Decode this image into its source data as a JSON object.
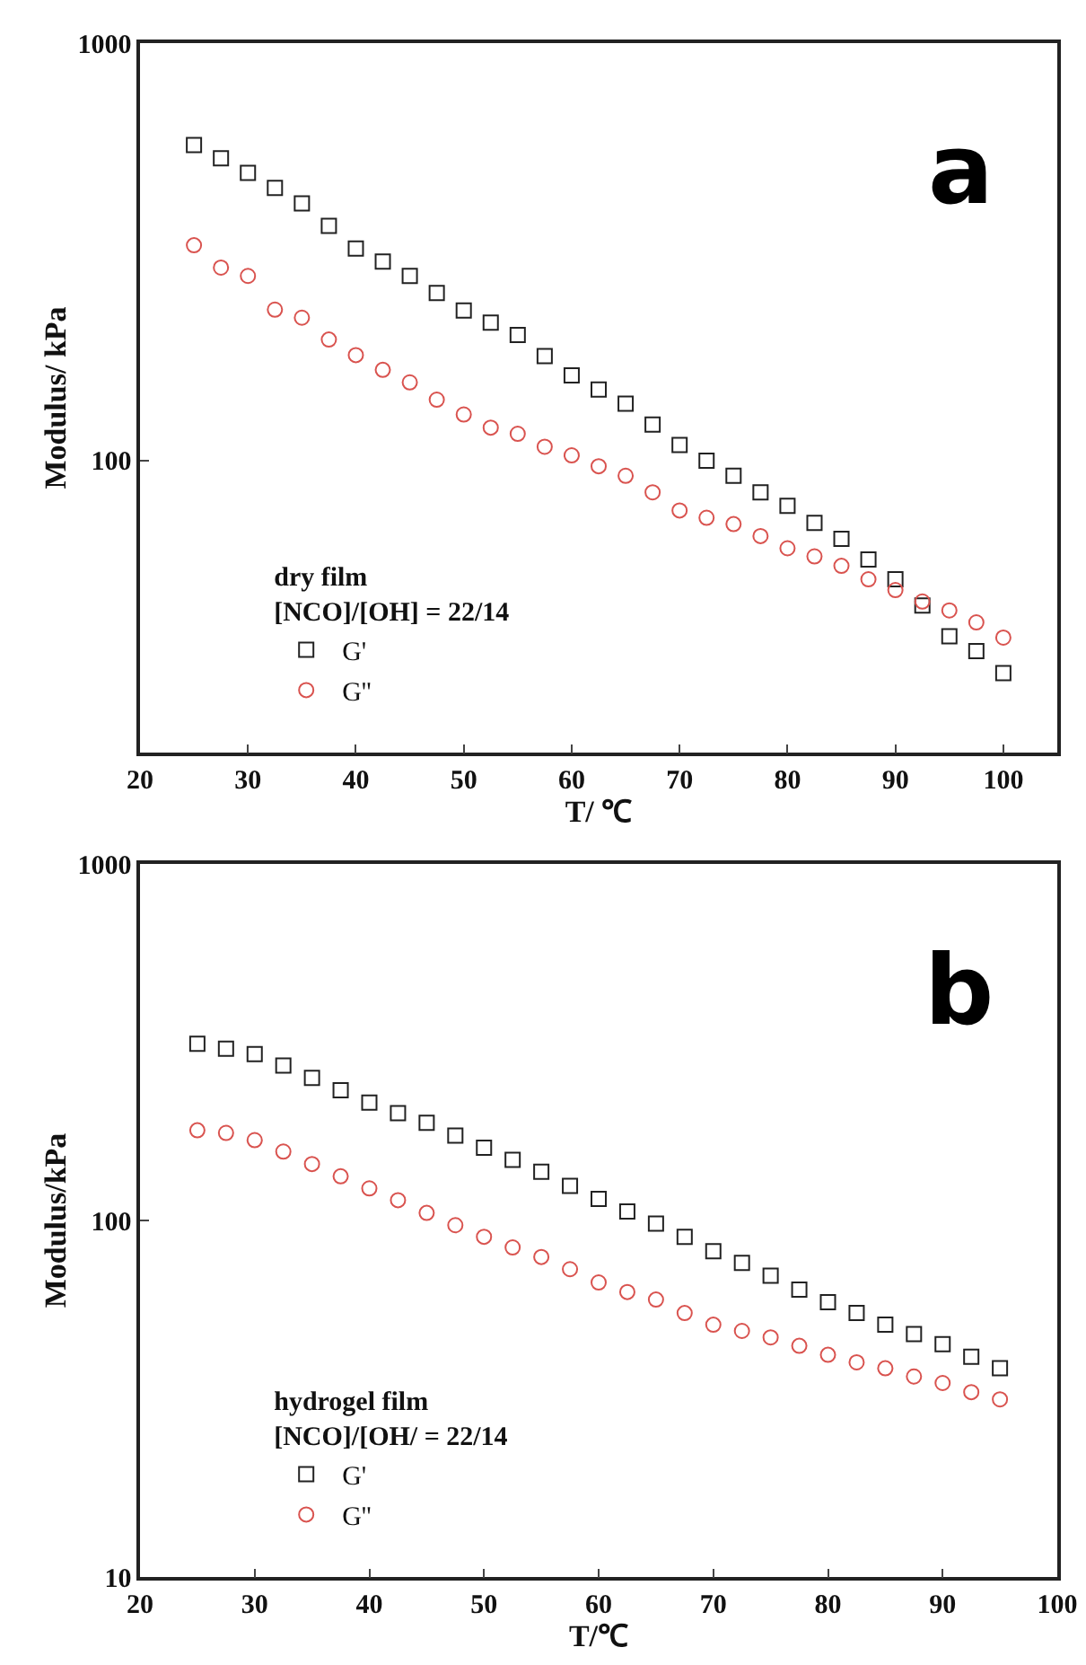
{
  "chart_data": [
    {
      "type": "scatter",
      "xlabel": "T/ ℃",
      "ylabel": "Modulus/ kPa",
      "legend_title": "dry film\n[NCO]/[OH] = 22/14",
      "legend": "bottom left",
      "log": "y",
      "xlim": [
        20,
        105
      ],
      "xticks": [
        20,
        30,
        40,
        50,
        60,
        70,
        80,
        90,
        100
      ],
      "ylim": [
        20,
        1000
      ],
      "yticks": [
        100,
        1000
      ],
      "annotations": [
        "a"
      ],
      "series": [
        {
          "name": "G'",
          "color": "#222222",
          "marker": "square",
          "x": [
            25,
            27.5,
            30,
            32.5,
            35,
            37.5,
            40,
            42.5,
            45,
            47.5,
            50,
            52.5,
            55,
            57.5,
            60,
            62.5,
            65,
            67.5,
            70,
            72.5,
            75,
            77.5,
            80,
            82.5,
            85,
            87.5,
            90,
            92.5,
            95,
            97.5,
            100
          ],
          "values": [
            570,
            530,
            489,
            450,
            413,
            365,
            322,
            300,
            277,
            252,
            229,
            214,
            200,
            178,
            160,
            148,
            137,
            122,
            109,
            100,
            92,
            84,
            78,
            71,
            65,
            58,
            52,
            45,
            38,
            35,
            31
          ]
        },
        {
          "name": "G''",
          "color": "#d9534f",
          "marker": "circle",
          "x": [
            25,
            27.5,
            30,
            32.5,
            35,
            37.5,
            40,
            42.5,
            45,
            47.5,
            50,
            52.5,
            55,
            57.5,
            60,
            62.5,
            65,
            67.5,
            70,
            72.5,
            75,
            77.5,
            80,
            82.5,
            85,
            87.5,
            90,
            92.5,
            95,
            97.5,
            100
          ],
          "values": [
            328,
            290,
            277,
            230,
            220,
            195,
            179,
            165,
            154,
            140,
            129,
            120,
            116,
            108,
            103,
            97,
            92,
            84,
            76,
            73,
            70.5,
            66,
            61.7,
            59,
            56,
            52,
            49,
            46,
            43.8,
            41,
            37.7
          ]
        }
      ]
    },
    {
      "type": "scatter",
      "xlabel": "T/℃",
      "ylabel": "Modulus/kPa",
      "legend_title": "hydrogel film\n[NCO]/[OH/ = 22/14",
      "legend": "bottom left",
      "log": "y",
      "xlim": [
        20,
        100
      ],
      "xticks": [
        20,
        30,
        40,
        50,
        60,
        70,
        80,
        90,
        100
      ],
      "ylim": [
        10,
        1000
      ],
      "yticks": [
        10,
        100,
        1000
      ],
      "annotations": [
        "b"
      ],
      "series": [
        {
          "name": "G'",
          "color": "#222222",
          "marker": "square",
          "x": [
            25,
            27.5,
            30,
            32.5,
            35,
            37.5,
            40,
            42.5,
            45,
            47.5,
            50,
            52.5,
            55,
            57.5,
            60,
            62.5,
            65,
            67.5,
            70,
            72.5,
            75,
            77.5,
            80,
            82.5,
            85,
            87.5,
            90,
            92.5,
            95
          ],
          "values": [
            313,
            303,
            293,
            272,
            251,
            232,
            214,
            200,
            188,
            173,
            160,
            148,
            137,
            125,
            115,
            106,
            98,
            90,
            82,
            76,
            70,
            64,
            59,
            55,
            51,
            48,
            45,
            41.5,
            38.5
          ]
        },
        {
          "name": "G''",
          "color": "#d9534f",
          "marker": "circle",
          "x": [
            25,
            27.5,
            30,
            32.5,
            35,
            37.5,
            40,
            42.5,
            45,
            47.5,
            50,
            52.5,
            55,
            57.5,
            60,
            62.5,
            65,
            67.5,
            70,
            72.5,
            75,
            77.5,
            80,
            82.5,
            85,
            87.5,
            90,
            92.5,
            95
          ],
          "values": [
            179,
            176,
            168,
            156,
            144,
            133,
            123,
            114,
            105,
            97,
            90,
            84,
            79,
            73,
            67,
            63,
            60,
            55,
            51,
            49,
            47,
            44.5,
            42,
            40,
            38.5,
            36.5,
            35,
            33,
            31.5
          ]
        }
      ]
    }
  ]
}
